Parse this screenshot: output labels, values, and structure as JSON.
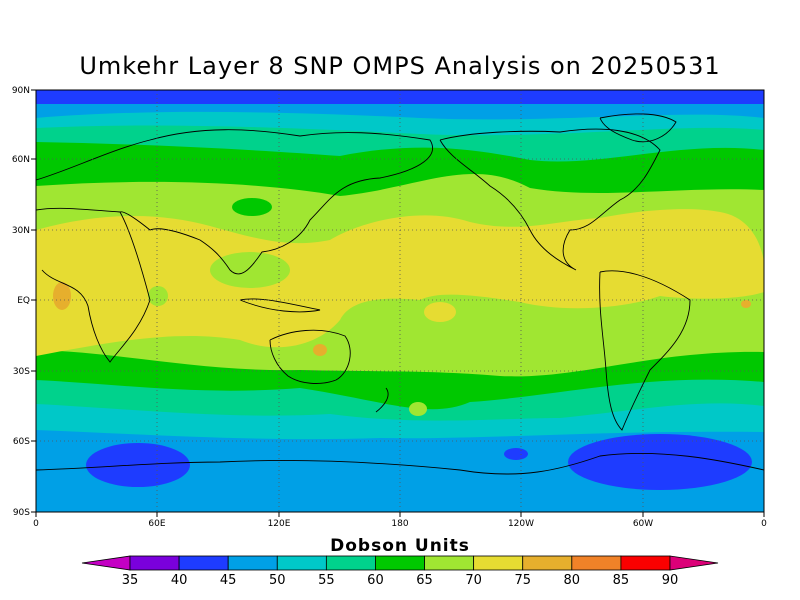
{
  "title": "Umkehr Layer 8 SNP OMPS Analysis on 20250531",
  "map": {
    "lat_labels": [
      "90N",
      "60N",
      "30N",
      "EQ",
      "30S",
      "60S",
      "90S"
    ],
    "lon_labels": [
      "0",
      "60E",
      "120E",
      "180",
      "120W",
      "60W",
      "0"
    ]
  },
  "colorbar": {
    "title": "Dobson Units",
    "labels": [
      "35",
      "40",
      "45",
      "50",
      "55",
      "60",
      "65",
      "70",
      "75",
      "80",
      "85",
      "90"
    ],
    "colors": [
      "#c400c4",
      "#7a00dc",
      "#1e3cff",
      "#00a0e6",
      "#00c8c8",
      "#00d28c",
      "#00c800",
      "#a0e632",
      "#e6dc32",
      "#e6af2d",
      "#f08228",
      "#fa0000",
      "#dc0078"
    ]
  },
  "palette": {
    "deepblue": "#1e3cff",
    "lightblue": "#00a0e6",
    "cyan": "#00c8c8",
    "teal": "#00d28c",
    "green": "#00c800",
    "lime": "#a0e632",
    "yellow": "#e6dc32",
    "orange": "#e6af2d"
  }
}
